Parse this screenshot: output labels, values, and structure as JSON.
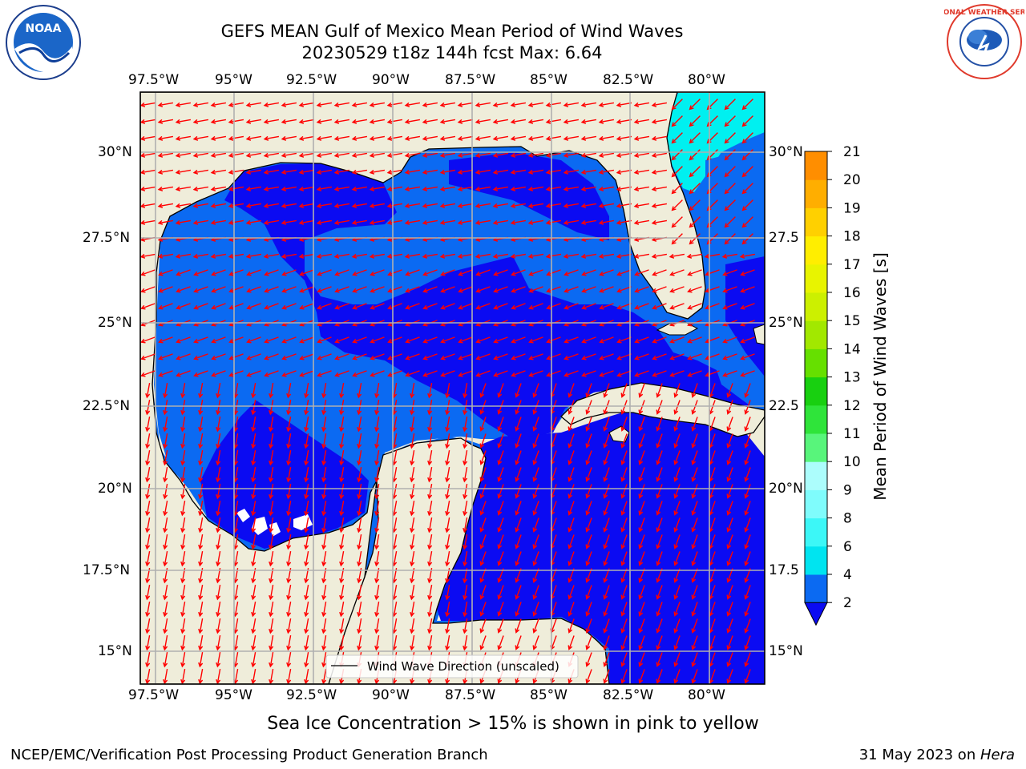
{
  "title": {
    "line1": "GEFS MEAN Gulf of Mexico Mean Period of Wind Waves",
    "line2": "20230529 t18z 144h fcst   Max: 6.64"
  },
  "lon_ticks": [
    "97.5°W",
    "95°W",
    "92.5°W",
    "90°W",
    "87.5°W",
    "85°W",
    "82.5°W",
    "80°W"
  ],
  "lat_ticks_left": [
    "30°N",
    "27.5°N",
    "25°N",
    "22.5°N",
    "20°N",
    "17.5°N",
    "15°N"
  ],
  "lat_ticks_right": [
    "30°N",
    "27.5",
    "25°N",
    "22.5",
    "20°N",
    "17.5",
    "15°N"
  ],
  "legend": {
    "label": "Wind Wave Direction (unscaled)"
  },
  "colorbar": {
    "label": "Mean Period of Wind Waves [s]",
    "ticks": [
      "2",
      "4",
      "6",
      "8",
      "9",
      "10",
      "11",
      "12",
      "13",
      "14",
      "15",
      "16",
      "17",
      "18",
      "19",
      "20",
      "21"
    ],
    "colors": [
      "#0b6af2",
      "#00e4f0",
      "#3cf7f7",
      "#7ffcfc",
      "#acfdfc",
      "#58f57b",
      "#2fe43a",
      "#18d010",
      "#66e000",
      "#a2e800",
      "#ccf000",
      "#e8f400",
      "#ffee00",
      "#ffd000",
      "#ffae00",
      "#ff8e00",
      "#ff6000",
      "#ff3000",
      "#ff0000"
    ],
    "under_color": "#0b0bf2"
  },
  "map_colors": {
    "land": "#efedda",
    "period_2_4": "#0b6af2",
    "period_under_2": "#0b0bf2",
    "period_4_6": "#00f0f0",
    "arrows": "#ff0000"
  },
  "logos": {
    "noaa": "NOAA",
    "nws_ring": "NATIONAL WEATHER SERVICE"
  },
  "sea_ice_note": "Sea Ice Concentration > 15% is shown in pink to yellow",
  "footer": {
    "left": "NCEP/EMC/Verification Post Processing Product Generation Branch",
    "right_prefix": "31 May 2023 on ",
    "right_host": "Hera"
  }
}
